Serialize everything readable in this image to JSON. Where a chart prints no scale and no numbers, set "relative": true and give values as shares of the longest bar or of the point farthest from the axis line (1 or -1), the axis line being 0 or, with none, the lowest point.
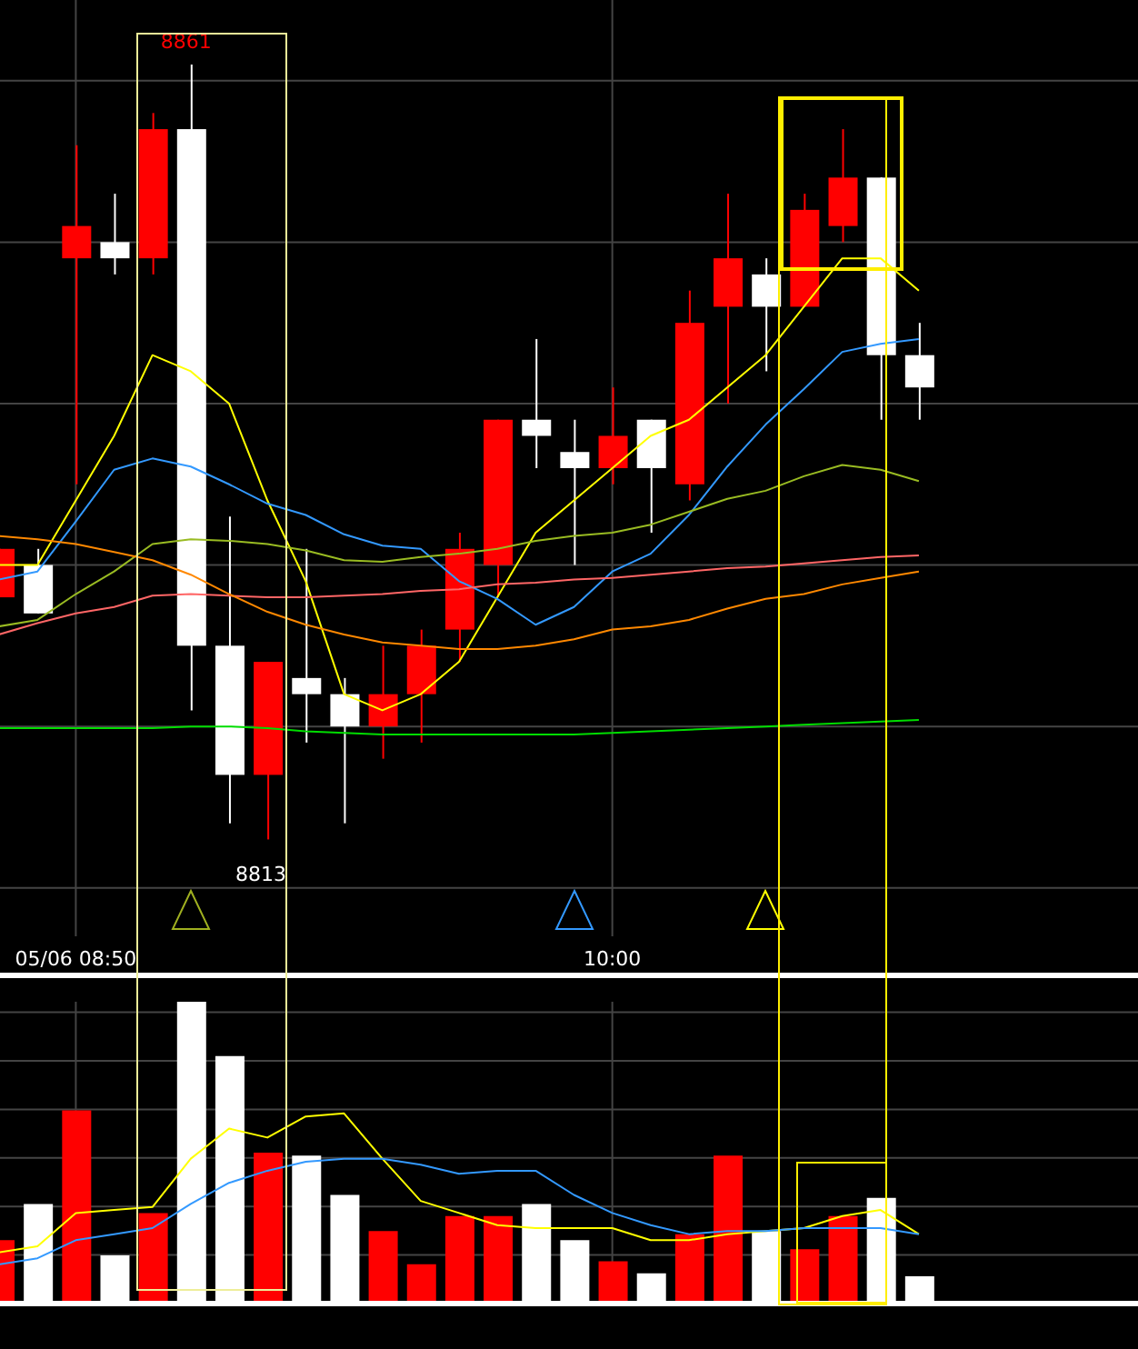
{
  "chart_data": [
    {
      "type": "candlestick",
      "categories": [
        null,
        null,
        "05/06 08:50",
        null,
        null,
        null,
        null,
        null,
        null,
        null,
        null,
        null,
        null,
        null,
        null,
        null,
        "10:00",
        null,
        null,
        null,
        null,
        null,
        null,
        null,
        null
      ],
      "series": [
        {
          "type": "line",
          "color": "#ffff00",
          "values": [
            8830,
            8830,
            8834,
            8838,
            8843,
            8842,
            8840,
            8834,
            8829,
            8822,
            8821,
            8822,
            8824,
            8828,
            8832,
            8834,
            8836,
            8838,
            8839,
            8841,
            8843,
            8846,
            8849,
            8849,
            8847
          ]
        },
        {
          "type": "line",
          "color": "#3399ff",
          "values": [
            8829.1,
            8829.6,
            8832.7,
            8835.9,
            8836.6,
            8836.1,
            8835,
            8833.8,
            8833.1,
            8831.9,
            8831.2,
            8831,
            8829,
            8827.9,
            8826.3,
            8827.4,
            8829.6,
            8830.7,
            8833.1,
            8836.1,
            8838.7,
            8840.9,
            8843.2,
            8843.7,
            8844
          ]
        },
        {
          "type": "line",
          "color": "#99bb22",
          "values": [
            8826.2,
            8826.6,
            8828.2,
            8829.6,
            8831.3,
            8831.6,
            8831.5,
            8831.3,
            8830.9,
            8830.3,
            8830.2,
            8830.5,
            8830.7,
            8831,
            8831.5,
            8831.8,
            8832,
            8832.5,
            8833.3,
            8834.1,
            8834.6,
            8835.5,
            8836.2,
            8835.9,
            8835.2
          ]
        },
        {
          "type": "line",
          "color": "#ff6666",
          "values": [
            8825.7,
            8826.4,
            8827,
            8827.4,
            8828.1,
            8828.2,
            8828.1,
            8828,
            8828,
            8828.1,
            8828.2,
            8828.4,
            8828.5,
            8828.8,
            8828.9,
            8829.1,
            8829.2,
            8829.4,
            8829.6,
            8829.8,
            8829.9,
            8830.1,
            8830.3,
            8830.5,
            8830.6
          ]
        },
        {
          "type": "line",
          "color": "#ff8800",
          "values": [
            8831.8,
            8831.6,
            8831.3,
            8830.8,
            8830.3,
            8829.4,
            8828.2,
            8827.1,
            8826.3,
            8825.7,
            8825.2,
            8825,
            8824.8,
            8824.8,
            8825,
            8825.4,
            8826,
            8826.2,
            8826.6,
            8827.3,
            8827.9,
            8828.2,
            8828.8,
            8829.2,
            8829.6
          ]
        },
        {
          "type": "line",
          "color": "#00dd00",
          "values": [
            8819.9,
            8819.9,
            8819.9,
            8819.9,
            8819.9,
            8820,
            8820,
            8819.9,
            8819.7,
            8819.6,
            8819.5,
            8819.5,
            8819.5,
            8819.5,
            8819.5,
            8819.5,
            8819.6,
            8819.7,
            8819.8,
            8819.9,
            8820,
            8820.1,
            8820.2,
            8820.3,
            8820.4
          ]
        },
        {
          "type": "candlestick",
          "ohlc": [
            [
              8828,
              8831,
              8828,
              8831
            ],
            [
              8830,
              8831,
              8827,
              8827
            ],
            [
              8849,
              8856,
              8835,
              8851
            ],
            [
              8850,
              8853,
              8848,
              8849
            ],
            [
              8849,
              8858,
              8848,
              8857
            ],
            [
              8857,
              8861,
              8821,
              8825
            ],
            [
              8825,
              8833,
              8814,
              8817
            ],
            [
              8817,
              8824,
              8813,
              8824
            ],
            [
              8823,
              8831,
              8819,
              8822
            ],
            [
              8822,
              8823,
              8814,
              8820
            ],
            [
              8820,
              8825,
              8818,
              8822
            ],
            [
              8822,
              8826,
              8819,
              8825
            ],
            [
              8826,
              8832,
              8824,
              8831
            ],
            [
              8830,
              8839,
              8828,
              8839
            ],
            [
              8839,
              8844,
              8836,
              8838
            ],
            [
              8837,
              8839,
              8830,
              8836
            ],
            [
              8836,
              8841,
              8835,
              8838
            ],
            [
              8839,
              8839,
              8832,
              8836
            ],
            [
              8835,
              8847,
              8834,
              8845
            ],
            [
              8846,
              8853,
              8840,
              8849
            ],
            [
              8848,
              8849,
              8842,
              8846
            ],
            [
              8846,
              8853,
              8846,
              8852
            ],
            [
              8851,
              8857,
              8850,
              8854
            ],
            [
              8854,
              8854,
              8839,
              8843
            ],
            [
              8843,
              8845,
              8839,
              8841
            ]
          ],
          "colors": [
            "#ff0000",
            "#ffffff",
            "#ff0000",
            "#ffffff",
            "#ff0000",
            "#ffffff",
            "#ffffff",
            "#ff0000",
            "#ffffff",
            "#ffffff",
            "#ff0000",
            "#ff0000",
            "#ff0000",
            "#ff0000",
            "#ffffff",
            "#ffffff",
            "#ff0000",
            "#ffffff",
            "#ff0000",
            "#ff0000",
            "#ffffff",
            "#ff0000",
            "#ff0000",
            "#ffffff",
            "#ffffff"
          ]
        }
      ],
      "ylim": [
        8807,
        8865
      ],
      "yticks": [
        {
          "value": 8810,
          "label": null
        },
        {
          "value": 8820,
          "label": null
        },
        {
          "value": 8830,
          "label": null
        },
        {
          "value": 8840,
          "label": null
        },
        {
          "value": 8850,
          "label": null
        },
        {
          "value": 8860,
          "label": null
        }
      ],
      "tick_labels": "x",
      "grid": true,
      "annotations": [
        {
          "text": "8861",
          "y": 8861
        },
        {
          "text": "8813",
          "y": 8813
        }
      ]
    },
    {
      "type": "bar",
      "relative": true,
      "tick_labels": false,
      "grid": true,
      "categories": [
        null,
        null,
        null,
        null,
        null,
        null,
        null,
        null,
        null,
        null,
        null,
        null,
        null,
        null,
        null,
        null,
        null,
        null,
        null,
        null,
        null,
        null,
        null,
        null,
        null
      ],
      "series": [
        {
          "type": "bar",
          "colors": [
            "#ff0000",
            "#ffffff",
            "#ff0000",
            "#ffffff",
            "#ff0000",
            "#ffffff",
            "#ffffff",
            "#ff0000",
            "#ffffff",
            "#ffffff",
            "#ff0000",
            "#ff0000",
            "#ff0000",
            "#ff0000",
            "#ffffff",
            "#ffffff",
            "#ff0000",
            "#ffffff",
            "#ff0000",
            "#ff0000",
            "#ffffff",
            "#ff0000",
            "#ff0000",
            "#ffffff",
            "#ffffff"
          ],
          "values": [
            0.21,
            0.33,
            0.64,
            0.16,
            0.3,
            1,
            0.82,
            0.5,
            0.49,
            0.36,
            0.24,
            0.13,
            0.29,
            0.29,
            0.33,
            0.21,
            0.14,
            0.1,
            0.23,
            0.49,
            0.24,
            0.18,
            0.29,
            0.35,
            0.09
          ]
        },
        {
          "type": "line",
          "color": "#ffff00",
          "values": [
            0.17,
            0.19,
            0.3,
            0.31,
            0.32,
            0.48,
            0.58,
            0.55,
            0.62,
            0.63,
            0.48,
            0.34,
            0.3,
            0.26,
            0.25,
            0.25,
            0.25,
            0.21,
            0.21,
            0.23,
            0.24,
            0.25,
            0.29,
            0.31,
            0.23
          ]
        },
        {
          "type": "line",
          "color": "#3399ff",
          "values": [
            0.13,
            0.15,
            0.21,
            0.23,
            0.25,
            0.33,
            0.4,
            0.44,
            0.47,
            0.48,
            0.48,
            0.46,
            0.43,
            0.44,
            0.44,
            0.36,
            0.3,
            0.26,
            0.23,
            0.24,
            0.24,
            0.25,
            0.25,
            0.25,
            0.23
          ]
        }
      ]
    }
  ]
}
